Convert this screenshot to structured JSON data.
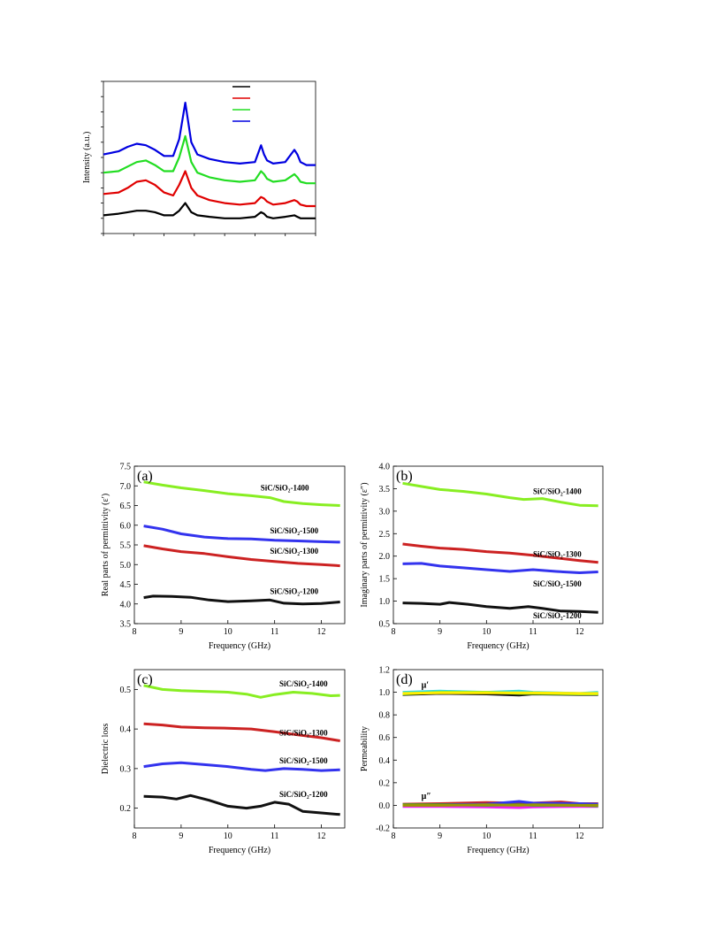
{
  "chart_data": [
    {
      "id": "xrd",
      "panel_label": "",
      "type": "line",
      "title": "",
      "xlabel": "",
      "ylabel": "Intensity (a.u.)",
      "xlim": [
        10,
        80
      ],
      "ylim": [
        0,
        100
      ],
      "grid": false,
      "legend": {
        "placement": "top-center",
        "entries": [
          {
            "color": "#000000",
            "label": ""
          },
          {
            "color": "#e00000",
            "label": ""
          },
          {
            "color": "#22dd22",
            "label": ""
          },
          {
            "color": "#0000e0",
            "label": ""
          }
        ]
      },
      "series": [
        {
          "color": "#000000",
          "x": [
            10,
            15,
            18,
            21,
            24,
            27,
            30,
            33,
            35,
            37,
            39,
            41,
            45,
            50,
            55,
            60,
            62,
            63,
            64,
            66,
            70,
            73,
            74,
            75,
            77,
            80
          ],
          "y": [
            12,
            13,
            14,
            15,
            15,
            14,
            12,
            12,
            15,
            20,
            14,
            12,
            11,
            10,
            10,
            11,
            14,
            13,
            11,
            10,
            11,
            12,
            11,
            10,
            10,
            10
          ]
        },
        {
          "color": "#e00000",
          "x": [
            10,
            15,
            18,
            21,
            24,
            27,
            30,
            33,
            35,
            37,
            39,
            41,
            45,
            50,
            55,
            60,
            62,
            63,
            64,
            66,
            70,
            73,
            74,
            75,
            77,
            80
          ],
          "y": [
            26,
            27,
            30,
            34,
            35,
            32,
            27,
            25,
            32,
            41,
            30,
            25,
            22,
            20,
            19,
            20,
            24,
            23,
            21,
            19,
            20,
            22,
            21,
            19,
            18,
            18
          ]
        },
        {
          "color": "#22dd22",
          "x": [
            10,
            15,
            18,
            21,
            24,
            27,
            30,
            33,
            35,
            37,
            39,
            41,
            45,
            50,
            55,
            60,
            62,
            63,
            64,
            66,
            70,
            73,
            74,
            75,
            77,
            80
          ],
          "y": [
            40,
            41,
            44,
            47,
            48,
            45,
            41,
            41,
            50,
            64,
            47,
            40,
            37,
            35,
            34,
            35,
            41,
            39,
            36,
            34,
            35,
            39,
            37,
            34,
            33,
            33
          ]
        },
        {
          "color": "#0000e0",
          "x": [
            10,
            15,
            18,
            21,
            24,
            27,
            30,
            33,
            35,
            37,
            39,
            41,
            45,
            50,
            55,
            60,
            62,
            63,
            64,
            66,
            70,
            73,
            74,
            75,
            77,
            80
          ],
          "y": [
            52,
            54,
            57,
            59,
            58,
            55,
            51,
            51,
            62,
            86,
            60,
            52,
            49,
            47,
            46,
            47,
            58,
            52,
            48,
            46,
            47,
            55,
            52,
            47,
            45,
            45
          ]
        }
      ]
    },
    {
      "id": "a",
      "panel_label": "(a)",
      "type": "line",
      "xlabel": "Frequency (GHz)",
      "ylabel": "Real parts of permittivity (ε′)",
      "xlim": [
        8,
        12.5
      ],
      "ylim": [
        3.5,
        7.5
      ],
      "xticks": [
        "8",
        "9",
        "10",
        "11",
        "12"
      ],
      "yticks": [
        "3.5",
        "4.0",
        "4.5",
        "5.0",
        "5.5",
        "6.0",
        "6.5",
        "7.0",
        "7.5"
      ],
      "grid": false,
      "series": [
        {
          "name": "SiC/SiO₂-1400",
          "color": "#88ee22",
          "label_at": [
            10.7,
            6.88
          ],
          "x": [
            8.2,
            8.6,
            9.0,
            9.5,
            10.0,
            10.5,
            10.9,
            11.2,
            11.6,
            12.0,
            12.4
          ],
          "y": [
            7.1,
            7.02,
            6.95,
            6.88,
            6.8,
            6.75,
            6.7,
            6.6,
            6.55,
            6.52,
            6.5
          ]
        },
        {
          "name": "SiC/SiO₂-1500",
          "color": "#3333ee",
          "label_at": [
            10.9,
            5.79
          ],
          "x": [
            8.2,
            8.6,
            9.0,
            9.5,
            10.0,
            10.5,
            11.0,
            11.5,
            12.0,
            12.4
          ],
          "y": [
            5.98,
            5.9,
            5.78,
            5.7,
            5.66,
            5.65,
            5.62,
            5.6,
            5.58,
            5.57
          ]
        },
        {
          "name": "SiC/SiO₂-1300",
          "color": "#cc2222",
          "label_at": [
            10.9,
            5.27
          ],
          "x": [
            8.2,
            8.6,
            9.0,
            9.5,
            10.0,
            10.5,
            11.0,
            11.5,
            12.0,
            12.4
          ],
          "y": [
            5.48,
            5.4,
            5.33,
            5.28,
            5.2,
            5.13,
            5.08,
            5.03,
            5.0,
            4.97
          ]
        },
        {
          "name": "SiC/SiO₂-1200",
          "color": "#111111",
          "label_at": [
            10.9,
            4.25
          ],
          "x": [
            8.2,
            8.4,
            8.8,
            9.2,
            9.6,
            10.0,
            10.5,
            10.9,
            11.2,
            11.6,
            12.0,
            12.4
          ],
          "y": [
            4.16,
            4.2,
            4.19,
            4.17,
            4.1,
            4.06,
            4.08,
            4.1,
            4.02,
            4.0,
            4.01,
            4.05
          ]
        }
      ]
    },
    {
      "id": "b",
      "panel_label": "(b)",
      "type": "line",
      "xlabel": "Frequency (GHz)",
      "ylabel": "Imaginary parts of permittivity (ε″)",
      "xlim": [
        8,
        12.5
      ],
      "ylim": [
        0.5,
        4.0
      ],
      "xticks": [
        "8",
        "9",
        "10",
        "11",
        "12"
      ],
      "yticks": [
        "0.5",
        "1.0",
        "1.5",
        "2.0",
        "2.5",
        "3.0",
        "3.5",
        "4.0"
      ],
      "grid": false,
      "series": [
        {
          "name": "SiC/SiO₂-1400",
          "color": "#88ee22",
          "label_at": [
            11.0,
            3.38
          ],
          "x": [
            8.2,
            8.6,
            9.0,
            9.5,
            10.0,
            10.5,
            10.8,
            11.2,
            11.6,
            12.0,
            12.4
          ],
          "y": [
            3.62,
            3.55,
            3.48,
            3.44,
            3.38,
            3.3,
            3.26,
            3.28,
            3.2,
            3.13,
            3.12
          ]
        },
        {
          "name": "SiC/SiO₂-1300",
          "color": "#cc2222",
          "label_at": [
            11.0,
            1.98
          ],
          "x": [
            8.2,
            8.6,
            9.0,
            9.5,
            10.0,
            10.5,
            11.0,
            11.5,
            12.0,
            12.4
          ],
          "y": [
            2.27,
            2.22,
            2.18,
            2.15,
            2.1,
            2.07,
            2.02,
            1.96,
            1.9,
            1.86
          ]
        },
        {
          "name": "SiC/SiO₂-1500",
          "color": "#3333ee",
          "label_at": [
            11.0,
            1.33
          ],
          "x": [
            8.2,
            8.6,
            9.0,
            9.5,
            10.0,
            10.5,
            11.0,
            11.5,
            12.0,
            12.4
          ],
          "y": [
            1.83,
            1.84,
            1.78,
            1.74,
            1.7,
            1.66,
            1.7,
            1.66,
            1.63,
            1.65
          ]
        },
        {
          "name": "SiC/SiO₂-1200",
          "color": "#111111",
          "label_at": [
            11.0,
            0.62
          ],
          "x": [
            8.2,
            8.6,
            9.0,
            9.2,
            9.6,
            10.0,
            10.5,
            10.9,
            11.2,
            11.6,
            12.0,
            12.4
          ],
          "y": [
            0.96,
            0.95,
            0.93,
            0.97,
            0.93,
            0.88,
            0.84,
            0.88,
            0.84,
            0.78,
            0.77,
            0.75
          ]
        }
      ]
    },
    {
      "id": "c",
      "panel_label": "(c)",
      "type": "line",
      "xlabel": "Frequency (GHz)",
      "ylabel": "Dielectric loss",
      "xlim": [
        8,
        12.5
      ],
      "ylim": [
        0.15,
        0.55
      ],
      "xticks": [
        "8",
        "9",
        "10",
        "11",
        "12"
      ],
      "yticks": [
        "0.2",
        "0.3",
        "0.4",
        "0.5"
      ],
      "grid": false,
      "series": [
        {
          "name": "SiC/SiO₂-1400",
          "color": "#88ee22",
          "label_at": [
            11.1,
            0.507
          ],
          "x": [
            8.2,
            8.6,
            9.0,
            9.5,
            10.0,
            10.4,
            10.7,
            11.0,
            11.4,
            11.8,
            12.2,
            12.4
          ],
          "y": [
            0.51,
            0.5,
            0.497,
            0.495,
            0.493,
            0.488,
            0.48,
            0.487,
            0.493,
            0.49,
            0.484,
            0.485
          ]
        },
        {
          "name": "SiC/SiO₂-1300",
          "color": "#cc2222",
          "label_at": [
            11.1,
            0.383
          ],
          "x": [
            8.2,
            8.6,
            9.0,
            9.5,
            10.0,
            10.5,
            11.0,
            11.5,
            12.0,
            12.4
          ],
          "y": [
            0.413,
            0.41,
            0.405,
            0.403,
            0.402,
            0.4,
            0.393,
            0.385,
            0.378,
            0.37
          ]
        },
        {
          "name": "SiC/SiO₂-1500",
          "color": "#3333ee",
          "label_at": [
            11.1,
            0.313
          ],
          "x": [
            8.2,
            8.6,
            9.0,
            9.5,
            10.0,
            10.5,
            10.8,
            11.2,
            11.6,
            12.0,
            12.4
          ],
          "y": [
            0.305,
            0.312,
            0.315,
            0.31,
            0.305,
            0.298,
            0.295,
            0.3,
            0.298,
            0.295,
            0.297
          ]
        },
        {
          "name": "SiC/SiO₂-1200",
          "color": "#111111",
          "label_at": [
            11.1,
            0.228
          ],
          "x": [
            8.2,
            8.6,
            8.9,
            9.2,
            9.6,
            10.0,
            10.4,
            10.7,
            11.0,
            11.3,
            11.6,
            12.0,
            12.4
          ],
          "y": [
            0.23,
            0.228,
            0.223,
            0.232,
            0.22,
            0.205,
            0.2,
            0.205,
            0.215,
            0.21,
            0.192,
            0.188,
            0.184
          ]
        }
      ]
    },
    {
      "id": "d",
      "panel_label": "(d)",
      "type": "line",
      "xlabel": "Frequency (GHz)",
      "ylabel": "Permeability",
      "xlim": [
        8,
        12.5
      ],
      "ylim": [
        -0.2,
        1.2
      ],
      "xticks": [
        "8",
        "9",
        "10",
        "11",
        "12"
      ],
      "yticks": [
        "-0.2",
        "0.0",
        "0.2",
        "0.4",
        "0.6",
        "0.8",
        "1.0",
        "1.2"
      ],
      "grid": false,
      "annotations": [
        {
          "text": "μ′",
          "at": [
            8.6,
            1.04
          ]
        },
        {
          "text": "μ″",
          "at": [
            8.6,
            0.06
          ]
        }
      ],
      "series": [
        {
          "color": "#33dddd",
          "x": [
            8.2,
            9,
            10,
            10.7,
            11,
            12,
            12.4
          ],
          "y": [
            1.0,
            1.01,
            1.0,
            1.01,
            1.0,
            0.99,
            1.0
          ]
        },
        {
          "color": "#111111",
          "x": [
            8.2,
            9,
            10,
            10.7,
            11,
            12,
            12.4
          ],
          "y": [
            0.98,
            0.99,
            0.985,
            0.975,
            0.985,
            0.98,
            0.98
          ]
        },
        {
          "color": "#88ee22",
          "x": [
            8.2,
            9,
            10,
            10.7,
            11,
            12,
            12.4
          ],
          "y": [
            0.985,
            1.0,
            1.0,
            0.99,
            0.99,
            0.985,
            0.985
          ]
        },
        {
          "color": "#ffee00",
          "x": [
            8.2,
            9,
            10,
            10.7,
            11,
            12,
            12.4
          ],
          "y": [
            0.99,
            0.995,
            0.995,
            0.995,
            0.995,
            0.99,
            0.99
          ]
        },
        {
          "color": "#cc2222",
          "x": [
            8.2,
            9,
            10,
            10.7,
            11,
            11.6,
            12,
            12.4
          ],
          "y": [
            0.01,
            0.015,
            0.025,
            0.02,
            0.02,
            0.03,
            0.015,
            0.015
          ]
        },
        {
          "color": "#3333ee",
          "x": [
            8.2,
            9,
            10,
            10.7,
            11,
            12,
            12.4
          ],
          "y": [
            0.0,
            0.005,
            0.01,
            0.035,
            0.02,
            0.015,
            0.01
          ]
        },
        {
          "color": "#ee22ee",
          "x": [
            8.2,
            9,
            10,
            10.7,
            11,
            12,
            12.4
          ],
          "y": [
            -0.01,
            -0.01,
            -0.015,
            -0.02,
            -0.015,
            -0.01,
            -0.01
          ]
        },
        {
          "color": "#33aa33",
          "x": [
            8.2,
            9,
            10,
            10.7,
            11,
            12,
            12.4
          ],
          "y": [
            0.005,
            0.005,
            0.0,
            0.005,
            0.0,
            0.0,
            -0.005
          ]
        },
        {
          "color": "#999900",
          "x": [
            8.2,
            9,
            10,
            10.7,
            11,
            12,
            12.4
          ],
          "y": [
            0.0,
            0.0,
            0.005,
            0.0,
            0.005,
            0.0,
            0.0
          ]
        }
      ]
    }
  ]
}
